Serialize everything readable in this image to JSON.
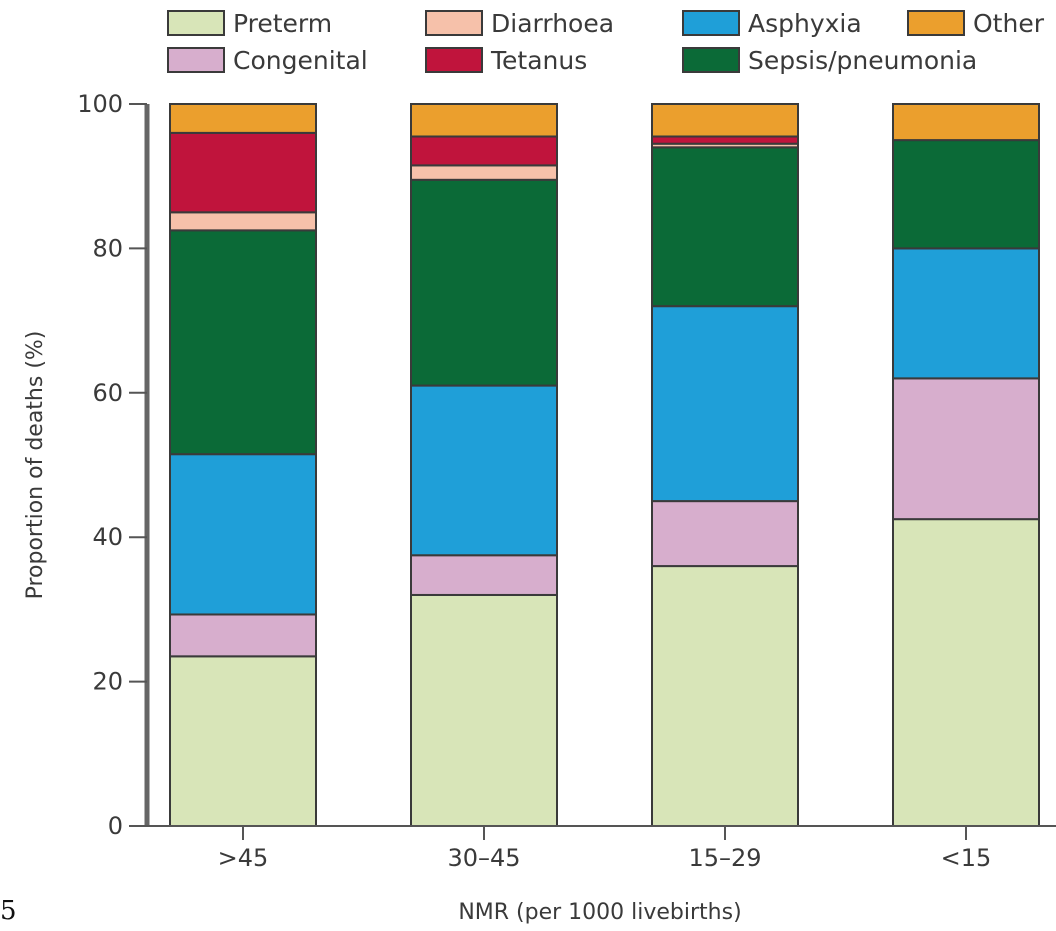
{
  "chart_data": {
    "type": "bar",
    "stacked": true,
    "categories": [
      ">45",
      "30–45",
      "15–29",
      "<15"
    ],
    "series": [
      {
        "name": "Preterm",
        "color": "#d8e5b8",
        "values": [
          23.5,
          32,
          36,
          42.5
        ]
      },
      {
        "name": "Congenital",
        "color": "#d7aecd",
        "values": [
          5.8,
          5.5,
          9,
          19.5
        ]
      },
      {
        "name": "Asphyxia",
        "color": "#1f9fd8",
        "values": [
          22.2,
          23.5,
          27,
          18
        ]
      },
      {
        "name": "Sepsis/pneumonia",
        "color": "#0b6a37",
        "values": [
          31,
          28.5,
          22,
          15
        ]
      },
      {
        "name": "Diarrhoea",
        "color": "#f6c1aa",
        "values": [
          2.5,
          2,
          0.5,
          0
        ]
      },
      {
        "name": "Tetanus",
        "color": "#c0143c",
        "values": [
          11,
          4,
          1,
          0
        ]
      },
      {
        "name": "Other",
        "color": "#eb9f2d",
        "values": [
          4,
          4.5,
          4.5,
          5
        ]
      }
    ],
    "legend_order": [
      "Preterm",
      "Diarrhoea",
      "Asphyxia",
      "Other",
      "Congenital",
      "Tetanus",
      "Sepsis/pneumonia"
    ],
    "legend_position": "top",
    "xlabel": "NMR (per 1000 livebirths)",
    "ylabel": "Proportion of deaths (%)",
    "ylim": [
      0,
      100
    ],
    "yticks": [
      0,
      20,
      40,
      60,
      80,
      100
    ],
    "grid": false
  },
  "page": {
    "corner_mark": "5"
  }
}
